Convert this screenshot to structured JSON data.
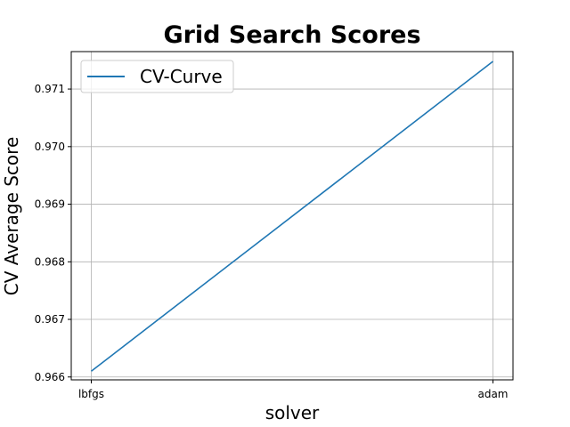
{
  "chart_data": {
    "type": "line",
    "title": "Grid Search Scores",
    "xlabel": "solver",
    "ylabel": "CV Average Score",
    "categories": [
      "lbfgs",
      "adam"
    ],
    "series": [
      {
        "name": "CV-Curve",
        "values": [
          0.9661,
          0.97148
        ],
        "color": "#1f77b4"
      }
    ],
    "yticks": [
      "0.966",
      "0.967",
      "0.968",
      "0.969",
      "0.970",
      "0.971"
    ],
    "ylim": [
      0.96595,
      0.97165
    ],
    "grid": true,
    "legend": "top-left"
  }
}
